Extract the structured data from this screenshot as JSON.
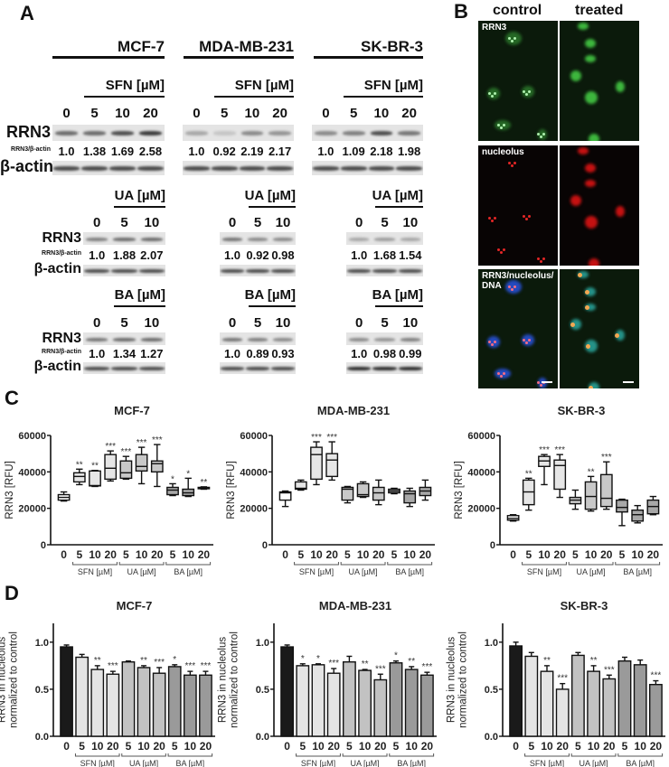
{
  "panelA": {
    "letter": "A",
    "row_labels": {
      "target": "RRN3",
      "ratio": "RRN3/β-actin",
      "loading": "β-actin"
    },
    "cell_lines": [
      {
        "name": "MCF-7",
        "blocks": [
          {
            "treatment": "SFN [µM]",
            "doses": [
              "0",
              "5",
              "10",
              "20"
            ],
            "ratios": [
              "1.0",
              "1.38",
              "1.69",
              "2.58"
            ]
          },
          {
            "treatment": "UA [µM]",
            "doses": [
              "0",
              "5",
              "10"
            ],
            "ratios": [
              "1.0",
              "1.88",
              "2.07"
            ]
          },
          {
            "treatment": "BA [µM]",
            "doses": [
              "0",
              "5",
              "10"
            ],
            "ratios": [
              "1.0",
              "1.34",
              "1.27"
            ]
          }
        ]
      },
      {
        "name": "MDA-MB-231",
        "blocks": [
          {
            "treatment": "SFN [µM]",
            "doses": [
              "0",
              "5",
              "10",
              "20"
            ],
            "ratios": [
              "1.0",
              "0.92",
              "2.19",
              "2.17"
            ]
          },
          {
            "treatment": "UA [µM]",
            "doses": [
              "0",
              "5",
              "10"
            ],
            "ratios": [
              "1.0",
              "0.92",
              "0.98"
            ]
          },
          {
            "treatment": "BA [µM]",
            "doses": [
              "0",
              "5",
              "10"
            ],
            "ratios": [
              "1.0",
              "0.89",
              "0.93"
            ]
          }
        ]
      },
      {
        "name": "SK-BR-3",
        "blocks": [
          {
            "treatment": "SFN [µM]",
            "doses": [
              "0",
              "5",
              "10",
              "20"
            ],
            "ratios": [
              "1.0",
              "1.09",
              "2.18",
              "1.98"
            ]
          },
          {
            "treatment": "UA [µM]",
            "doses": [
              "0",
              "5",
              "10"
            ],
            "ratios": [
              "1.0",
              "1.68",
              "1.54"
            ]
          },
          {
            "treatment": "BA [µM]",
            "doses": [
              "0",
              "5",
              "10"
            ],
            "ratios": [
              "1.0",
              "0.98",
              "0.99"
            ]
          }
        ]
      }
    ]
  },
  "panelB": {
    "letter": "B",
    "columns": [
      "control",
      "treated"
    ],
    "rows": [
      "RRN3",
      "nucleolus",
      "RRN3/nucleolus/\nDNA"
    ],
    "row_label_lines": [
      [
        "RRN3"
      ],
      [
        "nucleolus"
      ],
      [
        "RRN3/nucleolus/",
        "DNA"
      ]
    ]
  },
  "panelC": {
    "letter": "C"
  },
  "panelD": {
    "letter": "D"
  },
  "chart_data": [
    {
      "panel": "C",
      "type": "box",
      "title": "MCF-7",
      "ylabel": "RRN3 [RFU]",
      "ylim": [
        0,
        60000
      ],
      "yticks": [
        "0",
        "20000",
        "40000",
        "60000"
      ],
      "categories": [
        "0",
        "5",
        "10",
        "20",
        "5",
        "10",
        "20",
        "5",
        "10",
        "20"
      ],
      "groups": [
        {
          "label": "SFN [µM]",
          "from": 1,
          "to": 3
        },
        {
          "label": "UA [µM]",
          "from": 4,
          "to": 6
        },
        {
          "label": "BA [µM]",
          "from": 7,
          "to": 9
        }
      ],
      "boxes": [
        {
          "min": 24000,
          "q1": 24500,
          "median": 26000,
          "q3": 27500,
          "max": 29000,
          "sig": ""
        },
        {
          "min": 33000,
          "q1": 34500,
          "median": 37500,
          "q3": 39500,
          "max": 41500,
          "sig": "**"
        },
        {
          "min": 32000,
          "q1": 32300,
          "median": 32500,
          "q3": 40500,
          "max": 40800,
          "sig": "**"
        },
        {
          "min": 35000,
          "q1": 36000,
          "median": 42000,
          "q3": 49500,
          "max": 51500,
          "sig": "***"
        },
        {
          "min": 36000,
          "q1": 36500,
          "median": 39500,
          "q3": 46000,
          "max": 48500,
          "sig": "***"
        },
        {
          "min": 33500,
          "q1": 40500,
          "median": 43000,
          "q3": 49500,
          "max": 53500,
          "sig": "***"
        },
        {
          "min": 32000,
          "q1": 40000,
          "median": 44500,
          "q3": 46000,
          "max": 55000,
          "sig": "***"
        },
        {
          "min": 27000,
          "q1": 27500,
          "median": 30000,
          "q3": 31500,
          "max": 33500,
          "sig": "*"
        },
        {
          "min": 26500,
          "q1": 27000,
          "median": 28500,
          "q3": 30500,
          "max": 36500,
          "sig": "*"
        },
        {
          "min": 30500,
          "q1": 30800,
          "median": 31000,
          "q3": 31500,
          "max": 31800,
          "sig": "**"
        }
      ]
    },
    {
      "panel": "C",
      "type": "box",
      "title": "MDA-MB-231",
      "ylabel": "RRN3 [RFU]",
      "ylim": [
        0,
        60000
      ],
      "yticks": [
        "0",
        "20000",
        "40000",
        "60000"
      ],
      "categories": [
        "0",
        "5",
        "10",
        "20",
        "5",
        "10",
        "20",
        "5",
        "10",
        "20"
      ],
      "groups": [
        {
          "label": "SFN [µM]",
          "from": 1,
          "to": 3
        },
        {
          "label": "UA [µM]",
          "from": 4,
          "to": 6
        },
        {
          "label": "BA [µM]",
          "from": 7,
          "to": 9
        }
      ],
      "boxes": [
        {
          "min": 21000,
          "q1": 24500,
          "median": 28500,
          "q3": 29000,
          "max": 29500,
          "sig": ""
        },
        {
          "min": 30000,
          "q1": 30500,
          "median": 31000,
          "q3": 34500,
          "max": 35500,
          "sig": ""
        },
        {
          "min": 33000,
          "q1": 36000,
          "median": 49500,
          "q3": 53500,
          "max": 56500,
          "sig": "***"
        },
        {
          "min": 35500,
          "q1": 37500,
          "median": 46500,
          "q3": 50000,
          "max": 56500,
          "sig": "***"
        },
        {
          "min": 23000,
          "q1": 24500,
          "median": 30500,
          "q3": 31500,
          "max": 32000,
          "sig": ""
        },
        {
          "min": 26000,
          "q1": 26500,
          "median": 27500,
          "q3": 33500,
          "max": 34500,
          "sig": ""
        },
        {
          "min": 22000,
          "q1": 24500,
          "median": 28500,
          "q3": 31500,
          "max": 35500,
          "sig": ""
        },
        {
          "min": 28000,
          "q1": 28500,
          "median": 29500,
          "q3": 30500,
          "max": 31000,
          "sig": ""
        },
        {
          "min": 21000,
          "q1": 23000,
          "median": 28000,
          "q3": 29500,
          "max": 31000,
          "sig": ""
        },
        {
          "min": 24500,
          "q1": 27000,
          "median": 29500,
          "q3": 31500,
          "max": 35500,
          "sig": ""
        }
      ]
    },
    {
      "panel": "C",
      "type": "box",
      "title": "SK-BR-3",
      "ylabel": "RRN3 [RFU]",
      "ylim": [
        0,
        60000
      ],
      "yticks": [
        "0",
        "20000",
        "40000",
        "60000"
      ],
      "categories": [
        "0",
        "5",
        "10",
        "20",
        "5",
        "10",
        "20",
        "5",
        "10",
        "20"
      ],
      "groups": [
        {
          "label": "SFN [µM]",
          "from": 1,
          "to": 3
        },
        {
          "label": "UA [µM]",
          "from": 4,
          "to": 6
        },
        {
          "label": "BA [µM]",
          "from": 7,
          "to": 9
        }
      ],
      "boxes": [
        {
          "min": 13000,
          "q1": 13500,
          "median": 14500,
          "q3": 16000,
          "max": 16500,
          "sig": ""
        },
        {
          "min": 19000,
          "q1": 22000,
          "median": 29000,
          "q3": 35500,
          "max": 36500,
          "sig": "**"
        },
        {
          "min": 33000,
          "q1": 43000,
          "median": 46000,
          "q3": 48500,
          "max": 49500,
          "sig": "***"
        },
        {
          "min": 26000,
          "q1": 30500,
          "median": 43500,
          "q3": 46500,
          "max": 49500,
          "sig": "***"
        },
        {
          "min": 19500,
          "q1": 22500,
          "median": 24500,
          "q3": 26000,
          "max": 30000,
          "sig": ""
        },
        {
          "min": 18500,
          "q1": 19500,
          "median": 26500,
          "q3": 34500,
          "max": 37500,
          "sig": "**"
        },
        {
          "min": 19500,
          "q1": 21000,
          "median": 25500,
          "q3": 38500,
          "max": 45500,
          "sig": "***"
        },
        {
          "min": 10500,
          "q1": 18000,
          "median": 20500,
          "q3": 24500,
          "max": 25000,
          "sig": ""
        },
        {
          "min": 12000,
          "q1": 13000,
          "median": 16500,
          "q3": 19000,
          "max": 21500,
          "sig": ""
        },
        {
          "min": 16500,
          "q1": 17000,
          "median": 21000,
          "q3": 24500,
          "max": 26500,
          "sig": ""
        }
      ]
    },
    {
      "panel": "D",
      "type": "bar",
      "title": "MCF-7",
      "ylabel": "RRN3 in nucleolus\nnormalized to control",
      "ylim": [
        0,
        1.2
      ],
      "yticks": [
        "0.0",
        "0.5",
        "1.0"
      ],
      "categories": [
        "0",
        "5",
        "10",
        "20",
        "5",
        "10",
        "20",
        "5",
        "10",
        "20"
      ],
      "groups": [
        {
          "label": "SFN [µM]",
          "from": 1,
          "to": 3
        },
        {
          "label": "UA [µM]",
          "from": 4,
          "to": 6
        },
        {
          "label": "BA [µM]",
          "from": 7,
          "to": 9
        }
      ],
      "values": [
        0.95,
        0.84,
        0.71,
        0.66,
        0.79,
        0.73,
        0.67,
        0.74,
        0.65,
        0.65
      ],
      "errors": [
        0.02,
        0.03,
        0.04,
        0.03,
        0.01,
        0.02,
        0.06,
        0.02,
        0.04,
        0.04
      ],
      "significance": [
        "",
        "",
        "**",
        "***",
        "",
        "**",
        "***",
        "*",
        "***",
        "***"
      ]
    },
    {
      "panel": "D",
      "type": "bar",
      "title": "MDA-MB-231",
      "ylabel": "RRN3 in nucleolus\nnormalized to control",
      "ylim": [
        0,
        1.2
      ],
      "yticks": [
        "0.0",
        "0.5",
        "1.0"
      ],
      "categories": [
        "0",
        "5",
        "10",
        "20",
        "5",
        "10",
        "20",
        "5",
        "10",
        "20"
      ],
      "groups": [
        {
          "label": "SFN [µM]",
          "from": 1,
          "to": 3
        },
        {
          "label": "UA [µM]",
          "from": 4,
          "to": 6
        },
        {
          "label": "BA [µM]",
          "from": 7,
          "to": 9
        }
      ],
      "values": [
        0.95,
        0.75,
        0.76,
        0.67,
        0.79,
        0.7,
        0.6,
        0.78,
        0.71,
        0.65
      ],
      "errors": [
        0.02,
        0.02,
        0.01,
        0.05,
        0.06,
        0.01,
        0.06,
        0.02,
        0.03,
        0.03
      ],
      "significance": [
        "",
        "*",
        "*",
        "***",
        "",
        "**",
        "***",
        "*",
        "**",
        "***"
      ]
    },
    {
      "panel": "D",
      "type": "bar",
      "title": "SK-BR-3",
      "ylabel": "RRN3 in nucleolus\nnormalized to control",
      "ylim": [
        0,
        1.2
      ],
      "yticks": [
        "0.0",
        "0.5",
        "1.0"
      ],
      "categories": [
        "0",
        "5",
        "10",
        "20",
        "5",
        "10",
        "20",
        "5",
        "10",
        "20"
      ],
      "groups": [
        {
          "label": "SFN [µM]",
          "from": 1,
          "to": 3
        },
        {
          "label": "UA [µM]",
          "from": 4,
          "to": 6
        },
        {
          "label": "BA [µM]",
          "from": 7,
          "to": 9
        }
      ],
      "values": [
        0.96,
        0.85,
        0.69,
        0.5,
        0.86,
        0.69,
        0.61,
        0.8,
        0.76,
        0.55
      ],
      "errors": [
        0.04,
        0.04,
        0.06,
        0.06,
        0.03,
        0.06,
        0.04,
        0.04,
        0.05,
        0.04
      ],
      "significance": [
        "",
        "",
        "**",
        "***",
        "",
        "**",
        "***",
        "",
        "",
        "***"
      ]
    }
  ]
}
